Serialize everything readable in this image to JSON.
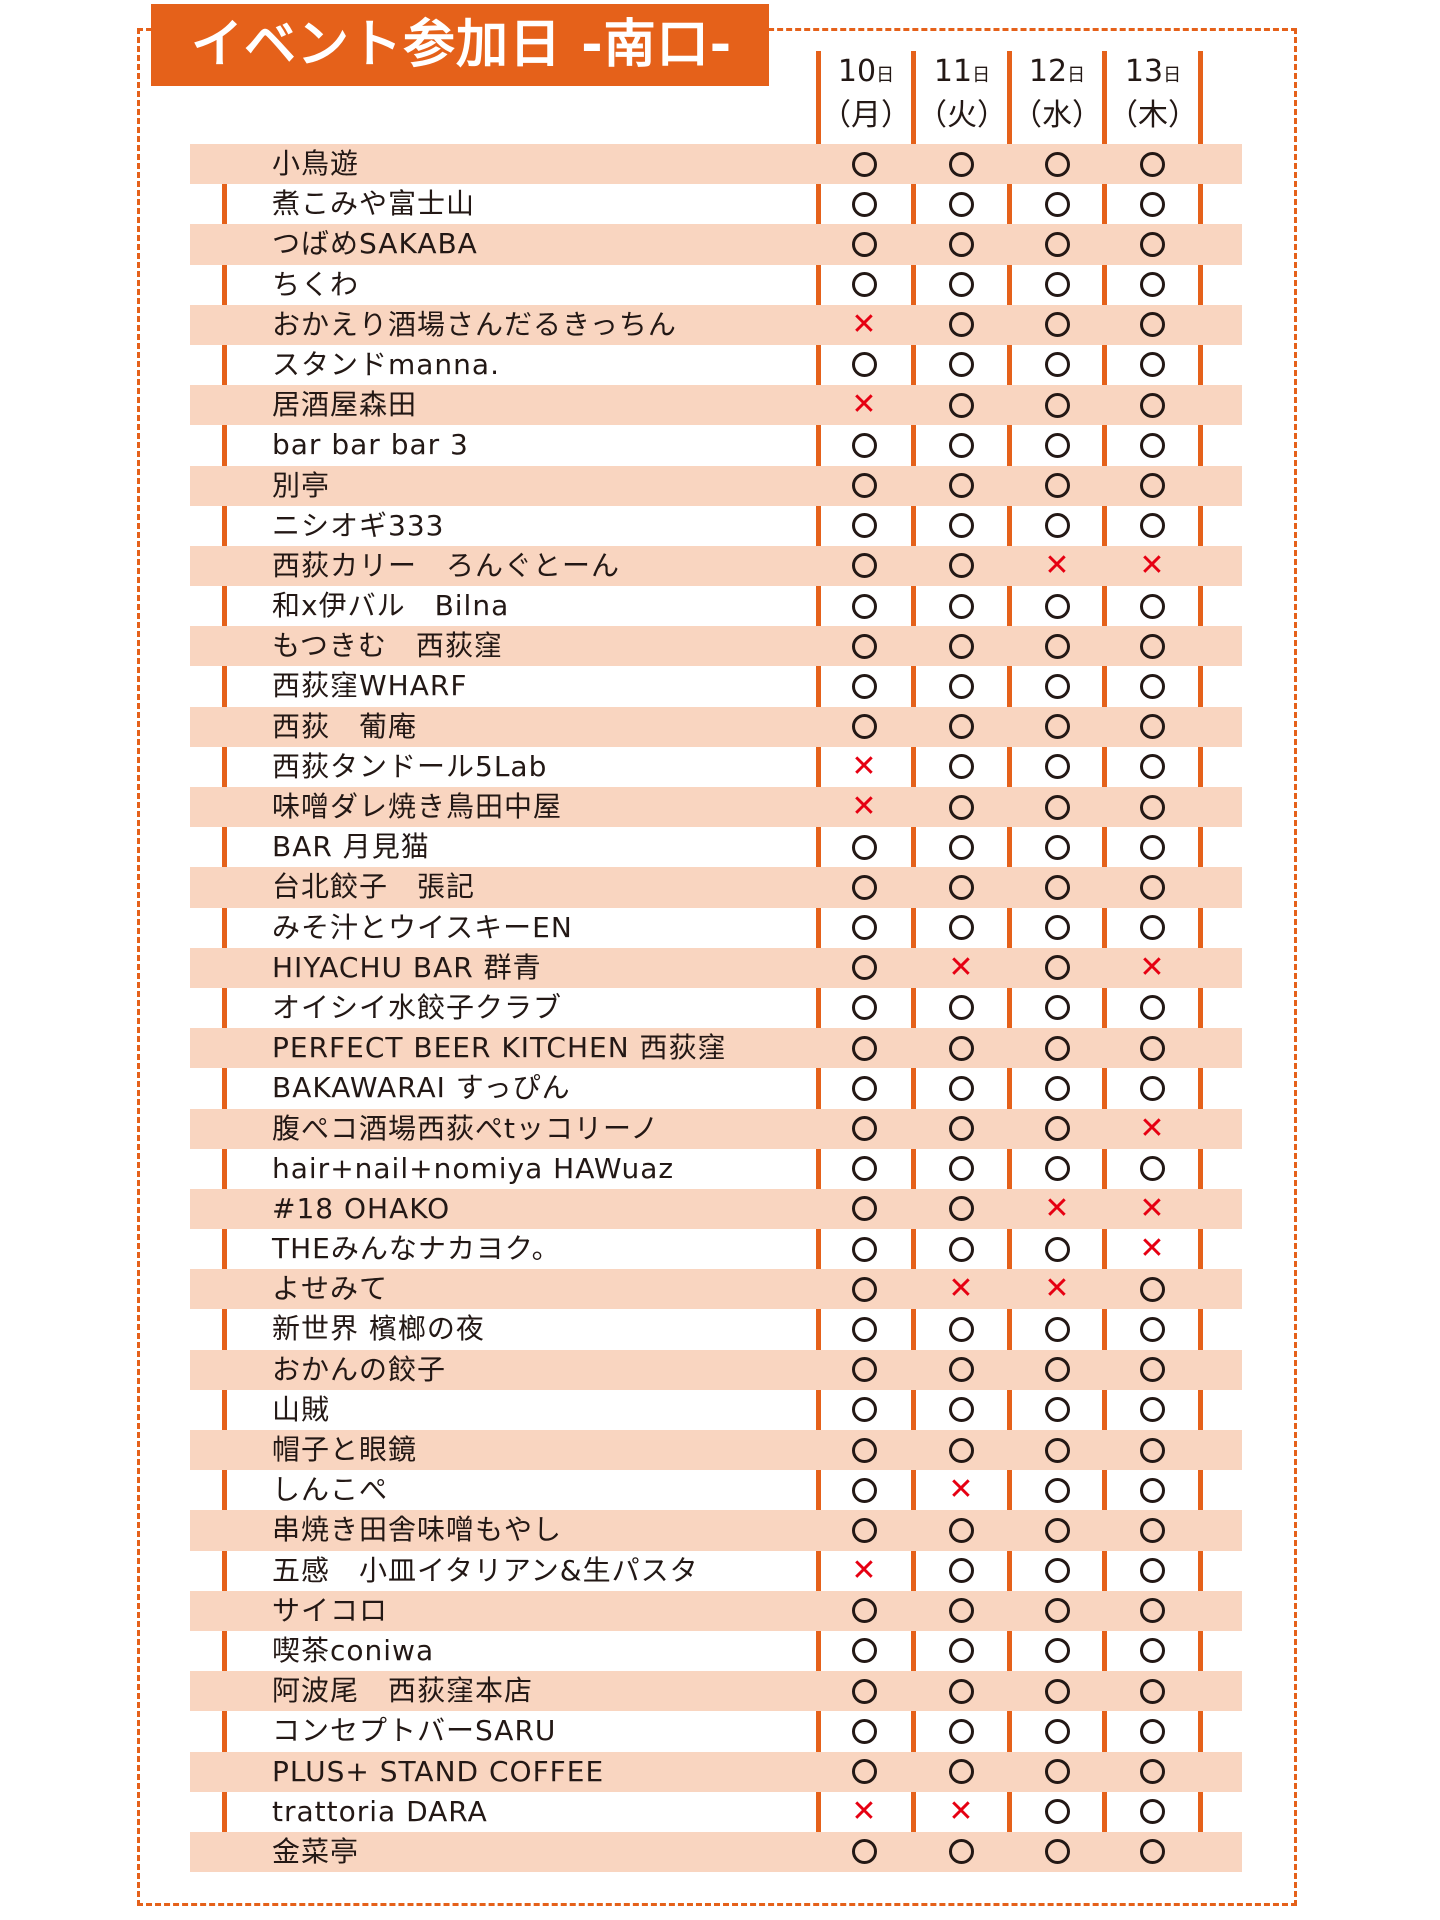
{
  "title": "イベント参加日 -南口-",
  "columns": [
    {
      "day": "10",
      "unit": "日",
      "weekday": "（月）"
    },
    {
      "day": "11",
      "unit": "日",
      "weekday": "（火）"
    },
    {
      "day": "12",
      "unit": "日",
      "weekday": "（水）"
    },
    {
      "day": "13",
      "unit": "日",
      "weekday": "（木）"
    }
  ],
  "marks": {
    "yes": "○",
    "no": "×"
  },
  "colors": {
    "accent": "#e5611a",
    "band": "#f9d5c0",
    "cross": "#e60012"
  },
  "rows": [
    {
      "name": "小鳥遊",
      "days": [
        "o",
        "o",
        "o",
        "o"
      ]
    },
    {
      "name": "煮こみや富士山",
      "days": [
        "o",
        "o",
        "o",
        "o"
      ]
    },
    {
      "name": "つばめSAKABA",
      "days": [
        "o",
        "o",
        "o",
        "o"
      ]
    },
    {
      "name": "ちくわ",
      "days": [
        "o",
        "o",
        "o",
        "o"
      ]
    },
    {
      "name": "おかえり酒場さんだるきっちん",
      "days": [
        "x",
        "o",
        "o",
        "o"
      ]
    },
    {
      "name": "スタンドmanna.",
      "days": [
        "o",
        "o",
        "o",
        "o"
      ]
    },
    {
      "name": "居酒屋森田",
      "days": [
        "x",
        "o",
        "o",
        "o"
      ]
    },
    {
      "name": "bar bar bar 3",
      "days": [
        "o",
        "o",
        "o",
        "o"
      ]
    },
    {
      "name": "別亭",
      "days": [
        "o",
        "o",
        "o",
        "o"
      ]
    },
    {
      "name": "ニシオギ333",
      "days": [
        "o",
        "o",
        "o",
        "o"
      ]
    },
    {
      "name": "西荻カリー　ろんぐとーん",
      "days": [
        "o",
        "o",
        "x",
        "x"
      ]
    },
    {
      "name": "和x伊バル　Bilna",
      "days": [
        "o",
        "o",
        "o",
        "o"
      ]
    },
    {
      "name": "もつきむ　西荻窪",
      "days": [
        "o",
        "o",
        "o",
        "o"
      ]
    },
    {
      "name": "西荻窪WHARF",
      "days": [
        "o",
        "o",
        "o",
        "o"
      ]
    },
    {
      "name": "西荻　葡庵",
      "days": [
        "o",
        "o",
        "o",
        "o"
      ]
    },
    {
      "name": "西荻タンドール5Lab",
      "days": [
        "x",
        "o",
        "o",
        "o"
      ]
    },
    {
      "name": "味噌ダレ焼き鳥田中屋",
      "days": [
        "x",
        "o",
        "o",
        "o"
      ]
    },
    {
      "name": "BAR 月見猫",
      "days": [
        "o",
        "o",
        "o",
        "o"
      ]
    },
    {
      "name": "台北餃子　張記",
      "days": [
        "o",
        "o",
        "o",
        "o"
      ]
    },
    {
      "name": "みそ汁とウイスキーEN",
      "days": [
        "o",
        "o",
        "o",
        "o"
      ]
    },
    {
      "name": "HIYACHU BAR 群青",
      "days": [
        "o",
        "x",
        "o",
        "x"
      ]
    },
    {
      "name": "オイシイ水餃子クラブ",
      "days": [
        "o",
        "o",
        "o",
        "o"
      ]
    },
    {
      "name": "PERFECT BEER KITCHEN 西荻窪",
      "days": [
        "o",
        "o",
        "o",
        "o"
      ]
    },
    {
      "name": "BAKAWARAI すっぴん",
      "days": [
        "o",
        "o",
        "o",
        "o"
      ]
    },
    {
      "name": "腹ぺコ酒場西荻ぺtッコリーノ",
      "days": [
        "o",
        "o",
        "o",
        "x"
      ]
    },
    {
      "name": "hair+nail+nomiya HAWuaz",
      "days": [
        "o",
        "o",
        "o",
        "o"
      ]
    },
    {
      "name": "#18 OHAKO",
      "days": [
        "o",
        "o",
        "x",
        "x"
      ]
    },
    {
      "name": "THEみんなナカヨク。",
      "days": [
        "o",
        "o",
        "o",
        "x"
      ]
    },
    {
      "name": "よせみて",
      "days": [
        "o",
        "x",
        "x",
        "o"
      ]
    },
    {
      "name": "新世界 檳榔の夜",
      "days": [
        "o",
        "o",
        "o",
        "o"
      ]
    },
    {
      "name": "おかんの餃子",
      "days": [
        "o",
        "o",
        "o",
        "o"
      ]
    },
    {
      "name": "山賊",
      "days": [
        "o",
        "o",
        "o",
        "o"
      ]
    },
    {
      "name": "帽子と眼鏡",
      "days": [
        "o",
        "o",
        "o",
        "o"
      ]
    },
    {
      "name": "しんこぺ",
      "days": [
        "o",
        "x",
        "o",
        "o"
      ]
    },
    {
      "name": "串焼き田舎味噌もやし",
      "days": [
        "o",
        "o",
        "o",
        "o"
      ]
    },
    {
      "name": "五感　小皿イタリアン&生パスタ",
      "days": [
        "x",
        "o",
        "o",
        "o"
      ]
    },
    {
      "name": "サイコロ",
      "days": [
        "o",
        "o",
        "o",
        "o"
      ]
    },
    {
      "name": "喫茶coniwa",
      "days": [
        "o",
        "o",
        "o",
        "o"
      ]
    },
    {
      "name": "阿波尾　西荻窪本店",
      "days": [
        "o",
        "o",
        "o",
        "o"
      ]
    },
    {
      "name": "コンセプトバーSARU",
      "days": [
        "o",
        "o",
        "o",
        "o"
      ]
    },
    {
      "name": "PLUS+ STAND COFFEE",
      "days": [
        "o",
        "o",
        "o",
        "o"
      ]
    },
    {
      "name": "trattoria DARA",
      "days": [
        "x",
        "x",
        "o",
        "o"
      ]
    },
    {
      "name": "金菜亭",
      "days": [
        "o",
        "o",
        "o",
        "o"
      ]
    }
  ]
}
